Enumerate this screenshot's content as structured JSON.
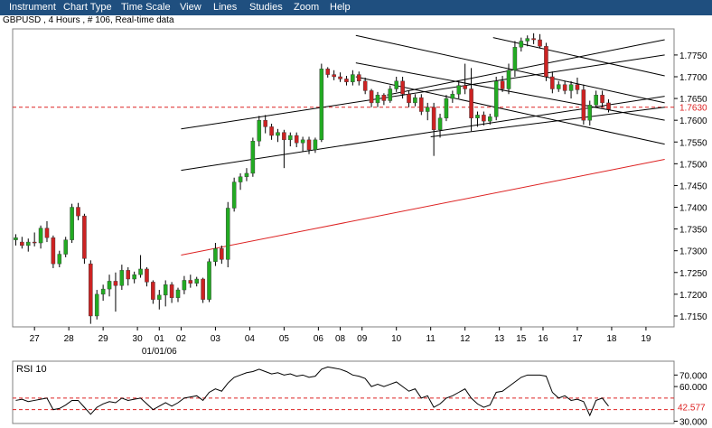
{
  "menu": [
    "Instrument",
    "Chart Type",
    "Time Scale",
    "View",
    "Lines",
    "Studies",
    "Zoom",
    "Help"
  ],
  "title": "GBPUSD , 4 Hours , # 106, Real-time data",
  "colors": {
    "menubar": "#1f4f7f",
    "bull": "#22aa22",
    "bear": "#cc2222",
    "ref_line": "#dd2222",
    "trend": "#000000",
    "regression": "#dd2222",
    "grid": "#c0c0c0"
  },
  "chart_data": [
    {
      "type": "candlestick",
      "symbol": "GBPUSD",
      "timeframe": "4 Hours",
      "ylim": [
        1.7125,
        1.781
      ],
      "yticks": [
        1.715,
        1.72,
        1.725,
        1.73,
        1.735,
        1.74,
        1.745,
        1.75,
        1.755,
        1.76,
        1.765,
        1.77,
        1.775
      ],
      "ytick_labels": [
        "1.7150",
        "1.7200",
        "1.7250",
        "1.7300",
        "1.7350",
        "1.7400",
        "1.7450",
        "1.7500",
        "1.7550",
        "1.7600",
        "1.7650",
        "1.7700",
        "1.7750"
      ],
      "xlim": [
        0,
        106
      ],
      "xticks": [
        {
          "label": "27",
          "x": 3.5
        },
        {
          "label": "28",
          "x": 9
        },
        {
          "label": "29",
          "x": 14.5
        },
        {
          "label": "30",
          "x": 20
        },
        {
          "label": "01",
          "x": 23.5
        },
        {
          "label": "02",
          "x": 27
        },
        {
          "label": "03",
          "x": 32.5
        },
        {
          "label": "04",
          "x": 38
        },
        {
          "label": "05",
          "x": 43.5
        },
        {
          "label": "06",
          "x": 49
        },
        {
          "label": "08",
          "x": 52.5
        },
        {
          "label": "09",
          "x": 56
        },
        {
          "label": "10",
          "x": 61.5
        },
        {
          "label": "11",
          "x": 67
        },
        {
          "label": "12",
          "x": 72.5
        },
        {
          "label": "13",
          "x": 78
        },
        {
          "label": "15",
          "x": 81.5
        },
        {
          "label": "16",
          "x": 85
        },
        {
          "label": "17",
          "x": 90.5
        },
        {
          "label": "18",
          "x": 96
        },
        {
          "label": "19",
          "x": 101.5
        }
      ],
      "date_label": {
        "label": "01/01/06",
        "x": 23.5
      },
      "reference_line": {
        "value": 1.763,
        "label": "1.7630"
      },
      "candles": [
        {
          "x": 0.5,
          "o": 1.7325,
          "h": 1.7338,
          "l": 1.7312,
          "c": 1.733
        },
        {
          "x": 1.5,
          "o": 1.732,
          "h": 1.7332,
          "l": 1.7305,
          "c": 1.7312
        },
        {
          "x": 2.5,
          "o": 1.7312,
          "h": 1.7328,
          "l": 1.7298,
          "c": 1.732
        },
        {
          "x": 3.5,
          "o": 1.732,
          "h": 1.7342,
          "l": 1.731,
          "c": 1.7318
        },
        {
          "x": 4.5,
          "o": 1.7318,
          "h": 1.7358,
          "l": 1.7305,
          "c": 1.7352
        },
        {
          "x": 5.5,
          "o": 1.7352,
          "h": 1.7368,
          "l": 1.732,
          "c": 1.733
        },
        {
          "x": 6.5,
          "o": 1.733,
          "h": 1.7335,
          "l": 1.726,
          "c": 1.727
        },
        {
          "x": 7.5,
          "o": 1.727,
          "h": 1.73,
          "l": 1.7262,
          "c": 1.7292
        },
        {
          "x": 8.5,
          "o": 1.7292,
          "h": 1.7332,
          "l": 1.7285,
          "c": 1.7325
        },
        {
          "x": 9.5,
          "o": 1.7325,
          "h": 1.7408,
          "l": 1.7318,
          "c": 1.74
        },
        {
          "x": 10.5,
          "o": 1.74,
          "h": 1.741,
          "l": 1.737,
          "c": 1.738
        },
        {
          "x": 11.5,
          "o": 1.738,
          "h": 1.7385,
          "l": 1.727,
          "c": 1.7282
        },
        {
          "x": 12.5,
          "o": 1.727,
          "h": 1.7278,
          "l": 1.7132,
          "c": 1.715
        },
        {
          "x": 13.5,
          "o": 1.715,
          "h": 1.721,
          "l": 1.7142,
          "c": 1.72
        },
        {
          "x": 14.5,
          "o": 1.72,
          "h": 1.7222,
          "l": 1.7185,
          "c": 1.7212
        },
        {
          "x": 15.5,
          "o": 1.7212,
          "h": 1.7245,
          "l": 1.7195,
          "c": 1.723
        },
        {
          "x": 16.5,
          "o": 1.723,
          "h": 1.725,
          "l": 1.716,
          "c": 1.722
        },
        {
          "x": 17.5,
          "o": 1.722,
          "h": 1.7268,
          "l": 1.721,
          "c": 1.7255
        },
        {
          "x": 18.5,
          "o": 1.7255,
          "h": 1.7262,
          "l": 1.722,
          "c": 1.7235
        },
        {
          "x": 19.5,
          "o": 1.7235,
          "h": 1.7252,
          "l": 1.7225,
          "c": 1.7245
        },
        {
          "x": 20.5,
          "o": 1.7245,
          "h": 1.729,
          "l": 1.7238,
          "c": 1.7258
        },
        {
          "x": 21.5,
          "o": 1.7258,
          "h": 1.7262,
          "l": 1.7218,
          "c": 1.7228
        },
        {
          "x": 22.5,
          "o": 1.7228,
          "h": 1.7232,
          "l": 1.7178,
          "c": 1.7188
        },
        {
          "x": 23.5,
          "o": 1.7188,
          "h": 1.721,
          "l": 1.7165,
          "c": 1.7198
        },
        {
          "x": 24.5,
          "o": 1.7198,
          "h": 1.7232,
          "l": 1.7172,
          "c": 1.7222
        },
        {
          "x": 25.5,
          "o": 1.7222,
          "h": 1.7228,
          "l": 1.718,
          "c": 1.7192
        },
        {
          "x": 26.5,
          "o": 1.7192,
          "h": 1.7215,
          "l": 1.7182,
          "c": 1.721
        },
        {
          "x": 27.5,
          "o": 1.721,
          "h": 1.7242,
          "l": 1.72,
          "c": 1.7232
        },
        {
          "x": 28.5,
          "o": 1.7232,
          "h": 1.7245,
          "l": 1.7215,
          "c": 1.7225
        },
        {
          "x": 29.5,
          "o": 1.7225,
          "h": 1.724,
          "l": 1.7218,
          "c": 1.7235
        },
        {
          "x": 30.5,
          "o": 1.7235,
          "h": 1.7238,
          "l": 1.718,
          "c": 1.7188
        },
        {
          "x": 31.5,
          "o": 1.7188,
          "h": 1.7282,
          "l": 1.7182,
          "c": 1.7275
        },
        {
          "x": 32.5,
          "o": 1.7275,
          "h": 1.7318,
          "l": 1.7265,
          "c": 1.7305
        },
        {
          "x": 33.5,
          "o": 1.7305,
          "h": 1.7312,
          "l": 1.727,
          "c": 1.728
        },
        {
          "x": 34.5,
          "o": 1.728,
          "h": 1.7412,
          "l": 1.7262,
          "c": 1.7398
        },
        {
          "x": 35.5,
          "o": 1.7398,
          "h": 1.7468,
          "l": 1.739,
          "c": 1.7458
        },
        {
          "x": 36.5,
          "o": 1.7458,
          "h": 1.7478,
          "l": 1.744,
          "c": 1.747
        },
        {
          "x": 37.5,
          "o": 1.747,
          "h": 1.749,
          "l": 1.746,
          "c": 1.7478
        },
        {
          "x": 38.5,
          "o": 1.7478,
          "h": 1.756,
          "l": 1.747,
          "c": 1.7552
        },
        {
          "x": 39.5,
          "o": 1.7552,
          "h": 1.761,
          "l": 1.754,
          "c": 1.76
        },
        {
          "x": 40.5,
          "o": 1.76,
          "h": 1.7612,
          "l": 1.757,
          "c": 1.7585
        },
        {
          "x": 41.5,
          "o": 1.7585,
          "h": 1.7592,
          "l": 1.7555,
          "c": 1.7565
        },
        {
          "x": 42.5,
          "o": 1.7565,
          "h": 1.758,
          "l": 1.755,
          "c": 1.7572
        },
        {
          "x": 43.5,
          "o": 1.7572,
          "h": 1.7578,
          "l": 1.749,
          "c": 1.7555
        },
        {
          "x": 44.5,
          "o": 1.7555,
          "h": 1.7572,
          "l": 1.754,
          "c": 1.7565
        },
        {
          "x": 45.5,
          "o": 1.7565,
          "h": 1.7572,
          "l": 1.7538,
          "c": 1.7548
        },
        {
          "x": 46.5,
          "o": 1.7548,
          "h": 1.7562,
          "l": 1.7528,
          "c": 1.7555
        },
        {
          "x": 47.5,
          "o": 1.7555,
          "h": 1.7562,
          "l": 1.7522,
          "c": 1.7532
        },
        {
          "x": 48.5,
          "o": 1.7532,
          "h": 1.756,
          "l": 1.7525,
          "c": 1.7555
        },
        {
          "x": 49.5,
          "o": 1.7555,
          "h": 1.773,
          "l": 1.755,
          "c": 1.7718
        },
        {
          "x": 50.5,
          "o": 1.7718,
          "h": 1.7722,
          "l": 1.7698,
          "c": 1.7705
        },
        {
          "x": 51.5,
          "o": 1.7705,
          "h": 1.7715,
          "l": 1.7692,
          "c": 1.77
        },
        {
          "x": 52.5,
          "o": 1.77,
          "h": 1.771,
          "l": 1.7688,
          "c": 1.7695
        },
        {
          "x": 53.5,
          "o": 1.7695,
          "h": 1.7702,
          "l": 1.768,
          "c": 1.7688
        },
        {
          "x": 54.5,
          "o": 1.7688,
          "h": 1.7715,
          "l": 1.768,
          "c": 1.7705
        },
        {
          "x": 55.5,
          "o": 1.7705,
          "h": 1.7712,
          "l": 1.768,
          "c": 1.769
        },
        {
          "x": 56.5,
          "o": 1.769,
          "h": 1.7698,
          "l": 1.766,
          "c": 1.7668
        },
        {
          "x": 57.5,
          "o": 1.7668,
          "h": 1.7672,
          "l": 1.763,
          "c": 1.764
        },
        {
          "x": 58.5,
          "o": 1.764,
          "h": 1.7665,
          "l": 1.763,
          "c": 1.7658
        },
        {
          "x": 59.5,
          "o": 1.7658,
          "h": 1.7662,
          "l": 1.7635,
          "c": 1.7645
        },
        {
          "x": 60.5,
          "o": 1.7645,
          "h": 1.768,
          "l": 1.764,
          "c": 1.7672
        },
        {
          "x": 61.5,
          "o": 1.7672,
          "h": 1.77,
          "l": 1.7665,
          "c": 1.769
        },
        {
          "x": 62.5,
          "o": 1.769,
          "h": 1.77,
          "l": 1.765,
          "c": 1.766
        },
        {
          "x": 63.5,
          "o": 1.766,
          "h": 1.7668,
          "l": 1.763,
          "c": 1.764
        },
        {
          "x": 64.5,
          "o": 1.764,
          "h": 1.766,
          "l": 1.7632,
          "c": 1.7652
        },
        {
          "x": 65.5,
          "o": 1.7652,
          "h": 1.766,
          "l": 1.7612,
          "c": 1.762
        },
        {
          "x": 66.5,
          "o": 1.762,
          "h": 1.764,
          "l": 1.76,
          "c": 1.763
        },
        {
          "x": 67.5,
          "o": 1.763,
          "h": 1.764,
          "l": 1.7518,
          "c": 1.7578
        },
        {
          "x": 68.5,
          "o": 1.7578,
          "h": 1.7615,
          "l": 1.756,
          "c": 1.7605
        },
        {
          "x": 69.5,
          "o": 1.7605,
          "h": 1.7658,
          "l": 1.7598,
          "c": 1.765
        },
        {
          "x": 70.5,
          "o": 1.765,
          "h": 1.7668,
          "l": 1.764,
          "c": 1.766
        },
        {
          "x": 71.5,
          "o": 1.766,
          "h": 1.769,
          "l": 1.765,
          "c": 1.768
        },
        {
          "x": 72.5,
          "o": 1.768,
          "h": 1.773,
          "l": 1.766,
          "c": 1.7672
        },
        {
          "x": 73.5,
          "o": 1.7672,
          "h": 1.772,
          "l": 1.7575,
          "c": 1.7605
        },
        {
          "x": 74.5,
          "o": 1.7605,
          "h": 1.762,
          "l": 1.7585,
          "c": 1.7612
        },
        {
          "x": 75.5,
          "o": 1.7612,
          "h": 1.762,
          "l": 1.7588,
          "c": 1.7598
        },
        {
          "x": 76.5,
          "o": 1.7598,
          "h": 1.7615,
          "l": 1.759,
          "c": 1.7608
        },
        {
          "x": 77.5,
          "o": 1.7608,
          "h": 1.77,
          "l": 1.76,
          "c": 1.769
        },
        {
          "x": 78.5,
          "o": 1.769,
          "h": 1.7702,
          "l": 1.7665,
          "c": 1.7672
        },
        {
          "x": 79.5,
          "o": 1.7672,
          "h": 1.773,
          "l": 1.766,
          "c": 1.7715
        },
        {
          "x": 80.5,
          "o": 1.7715,
          "h": 1.7782,
          "l": 1.77,
          "c": 1.7768
        },
        {
          "x": 81.5,
          "o": 1.7768,
          "h": 1.779,
          "l": 1.7758,
          "c": 1.7782
        },
        {
          "x": 82.5,
          "o": 1.7782,
          "h": 1.7795,
          "l": 1.777,
          "c": 1.7788
        },
        {
          "x": 83.5,
          "o": 1.7788,
          "h": 1.78,
          "l": 1.7775,
          "c": 1.7785
        },
        {
          "x": 84.5,
          "o": 1.7785,
          "h": 1.7798,
          "l": 1.7765,
          "c": 1.777
        },
        {
          "x": 85.5,
          "o": 1.777,
          "h": 1.7778,
          "l": 1.769,
          "c": 1.77
        },
        {
          "x": 86.5,
          "o": 1.77,
          "h": 1.7712,
          "l": 1.7662,
          "c": 1.7672
        },
        {
          "x": 87.5,
          "o": 1.7672,
          "h": 1.769,
          "l": 1.7665,
          "c": 1.7682
        },
        {
          "x": 88.5,
          "o": 1.7682,
          "h": 1.769,
          "l": 1.766,
          "c": 1.7668
        },
        {
          "x": 89.5,
          "o": 1.7668,
          "h": 1.769,
          "l": 1.765,
          "c": 1.7682
        },
        {
          "x": 90.5,
          "o": 1.7682,
          "h": 1.7698,
          "l": 1.766,
          "c": 1.767
        },
        {
          "x": 91.5,
          "o": 1.767,
          "h": 1.7682,
          "l": 1.759,
          "c": 1.76
        },
        {
          "x": 92.5,
          "o": 1.76,
          "h": 1.7645,
          "l": 1.7588,
          "c": 1.7635
        },
        {
          "x": 93.5,
          "o": 1.7635,
          "h": 1.7668,
          "l": 1.763,
          "c": 1.7658
        },
        {
          "x": 94.5,
          "o": 1.7658,
          "h": 1.7668,
          "l": 1.763,
          "c": 1.764
        },
        {
          "x": 95.5,
          "o": 1.764,
          "h": 1.7648,
          "l": 1.7618,
          "c": 1.7625
        }
      ],
      "trendlines": [
        {
          "x1": 27,
          "y1": 1.758,
          "x2": 104.5,
          "y2": 1.775
        },
        {
          "x1": 27,
          "y1": 1.7485,
          "x2": 104.5,
          "y2": 1.7655
        },
        {
          "x1": 27,
          "y1": 1.729,
          "x2": 104.5,
          "y2": 1.751,
          "color": "red"
        },
        {
          "x1": 55,
          "y1": 1.7732,
          "x2": 104.5,
          "y2": 1.76
        },
        {
          "x1": 55,
          "y1": 1.77,
          "x2": 104.5,
          "y2": 1.7545
        },
        {
          "x1": 55,
          "y1": 1.7795,
          "x2": 104.5,
          "y2": 1.764
        },
        {
          "x1": 77,
          "y1": 1.779,
          "x2": 104.5,
          "y2": 1.7702
        },
        {
          "x1": 67,
          "y1": 1.7562,
          "x2": 104.5,
          "y2": 1.763
        },
        {
          "x1": 60,
          "y1": 1.7658,
          "x2": 104.5,
          "y2": 1.7785
        }
      ]
    },
    {
      "type": "line",
      "title": "RSI 10",
      "ylim": [
        28,
        82
      ],
      "yticks": [
        {
          "value": 70,
          "label": "70.000"
        },
        {
          "value": 60,
          "label": "60.000"
        },
        {
          "value": 30,
          "label": "30.000"
        }
      ],
      "reference_lines": [
        50,
        40
      ],
      "value_label": {
        "value": 42.577,
        "label": "42.577"
      },
      "xlim": [
        0,
        106
      ],
      "x": [
        0,
        1,
        2,
        3,
        4,
        5,
        6,
        7,
        8,
        9,
        10,
        11,
        12,
        13,
        14,
        15,
        16,
        17,
        18,
        19,
        20,
        21,
        22,
        23,
        24,
        25,
        26,
        27,
        28,
        29,
        30,
        31,
        32,
        33,
        34,
        35,
        36,
        37,
        38,
        39,
        40,
        41,
        42,
        43,
        44,
        45,
        46,
        47,
        48,
        49,
        50,
        51,
        52,
        53,
        54,
        55,
        56,
        57,
        58,
        59,
        60,
        61,
        62,
        63,
        64,
        65,
        66,
        67,
        68,
        69,
        70,
        71,
        72,
        73,
        74,
        75,
        76,
        77,
        78,
        79,
        80,
        81,
        82,
        83,
        84,
        85,
        86,
        87,
        88,
        89,
        90,
        91,
        92,
        93,
        94,
        95
      ],
      "values": [
        48,
        49,
        47,
        48,
        49,
        50,
        40,
        41,
        44,
        48,
        48,
        42,
        36,
        42,
        45,
        47,
        46,
        50,
        48,
        49,
        50,
        45,
        40,
        43,
        46,
        43,
        46,
        50,
        51,
        52,
        48,
        55,
        58,
        56,
        63,
        68,
        70,
        72,
        73,
        75,
        73,
        71,
        72,
        70,
        71,
        69,
        70,
        68,
        69,
        75,
        77,
        76,
        75,
        73,
        70,
        69,
        67,
        60,
        62,
        60,
        62,
        64,
        60,
        56,
        58,
        50,
        52,
        42,
        45,
        50,
        52,
        55,
        58,
        50,
        45,
        42,
        44,
        55,
        56,
        60,
        64,
        68,
        70,
        70,
        70,
        69,
        55,
        50,
        52,
        48,
        49,
        47,
        35,
        48,
        50,
        43
      ]
    }
  ]
}
